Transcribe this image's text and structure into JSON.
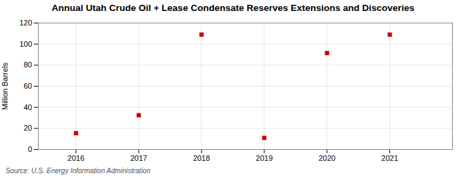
{
  "chart_data": {
    "type": "scatter",
    "title": "Annual Utah Crude Oil + Lease Condensate Reserves Extensions and Discoveries",
    "ylabel": "Million Barrels",
    "source": "Source: U.S. Energy Information Administration",
    "x": [
      2016,
      2017,
      2018,
      2019,
      2020,
      2021
    ],
    "values": [
      15.5,
      32.5,
      109.0,
      11.0,
      91.5,
      109.0
    ],
    "color": "#cc0000",
    "marker": "square",
    "xlim": [
      2015.4,
      2022.0
    ],
    "xticks": [
      2016,
      2017,
      2018,
      2019,
      2020,
      2021
    ],
    "ylim": [
      0,
      120
    ],
    "yticks": [
      0,
      20,
      40,
      60,
      80,
      100,
      120
    ],
    "grid": true
  }
}
